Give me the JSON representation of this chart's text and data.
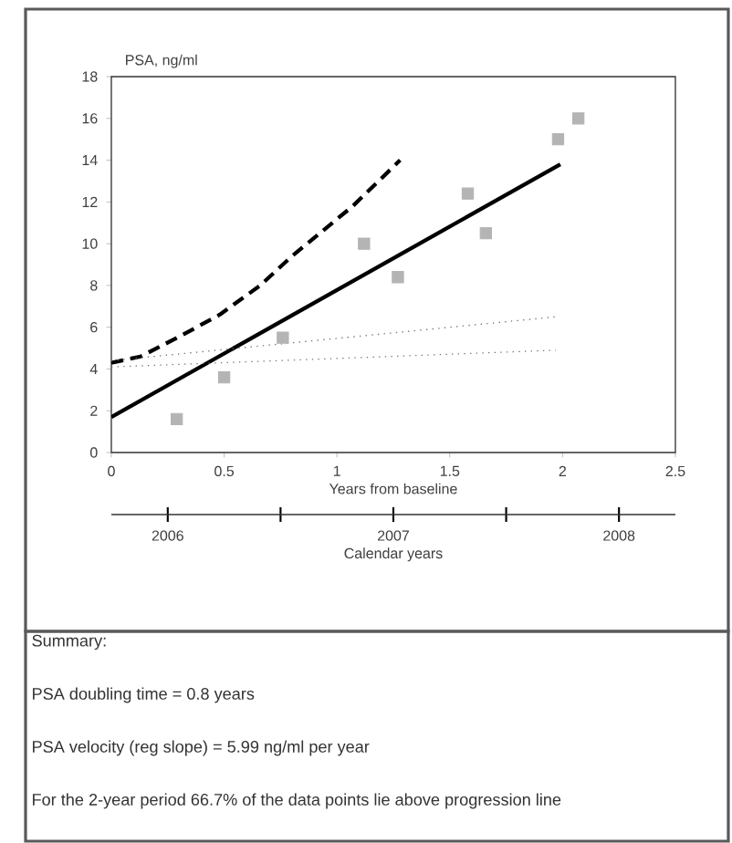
{
  "chart_data": {
    "type": "line",
    "xlabel": "Years from baseline",
    "ylabel": "PSA, ng/ml",
    "x2label": "Calendar years",
    "xlim": [
      0,
      2.5
    ],
    "xticks": [
      0,
      0.5,
      1,
      1.5,
      2,
      2.5
    ],
    "ylim": [
      0,
      18
    ],
    "yticks": [
      0,
      2,
      4,
      6,
      8,
      10,
      12,
      14,
      16,
      18
    ],
    "x2lim": [
      2005.75,
      2008.25
    ],
    "x2ticks": [
      2006,
      2007,
      2008
    ],
    "series": [
      {
        "type": "scatter",
        "marker": "square",
        "color": "#b4b4b4",
        "x": [
          0.29,
          0.5,
          0.76,
          1.12,
          1.27,
          1.58,
          1.66,
          1.98,
          2.07
        ],
        "values": [
          1.6,
          3.6,
          5.5,
          10.0,
          8.4,
          12.4,
          10.5,
          15.0,
          16.0
        ]
      },
      {
        "type": "line",
        "line_style": "solid",
        "color": "#000000",
        "x": [
          0,
          1.99
        ],
        "values": [
          1.7,
          13.8
        ]
      },
      {
        "type": "line",
        "line_style": "dashed",
        "color": "#000000",
        "x": [
          0,
          0.13,
          0.31,
          0.48,
          0.66,
          0.8,
          1.07,
          1.28
        ],
        "values": [
          4.3,
          4.6,
          5.6,
          6.6,
          8.0,
          9.4,
          11.8,
          14.0
        ]
      },
      {
        "type": "line",
        "line_style": "dotted",
        "color": "#707070",
        "x": [
          0,
          1.97
        ],
        "values": [
          4.4,
          6.5
        ]
      },
      {
        "type": "line",
        "line_style": "dotted",
        "color": "#707070",
        "x": [
          0,
          1.97
        ],
        "values": [
          4.1,
          4.9
        ]
      }
    ],
    "annotations": [
      "Summary:",
      "PSA doubling time = 0.8 years",
      "PSA velocity (reg slope) = 5.99 ng/ml per year",
      "For the 2-year period 66.7% of the data points lie above progression line"
    ]
  }
}
